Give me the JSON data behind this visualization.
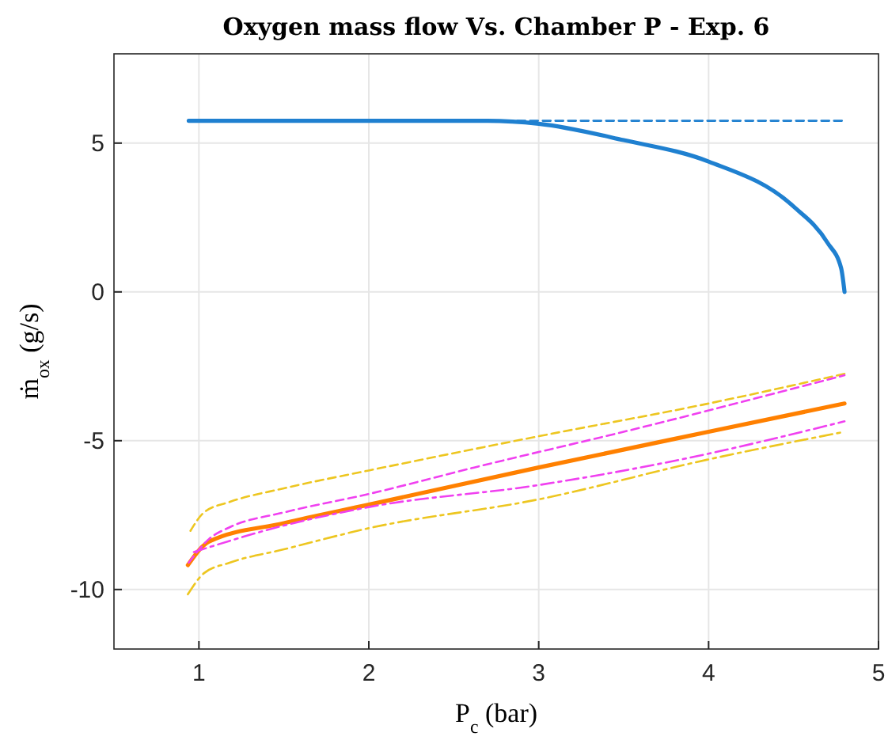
{
  "chart_data": {
    "type": "line",
    "title": "Oxygen mass flow Vs. Chamber P - Exp. 6",
    "xlabel": "P$_{c}$ (bar)",
    "ylabel": "ṁ$_{ox}$ (g/s)",
    "xlim": [
      0.5,
      5
    ],
    "ylim": [
      -12,
      8
    ],
    "xticks": [
      1,
      2,
      3,
      4,
      5
    ],
    "yticks": [
      -10,
      -5,
      0,
      5
    ],
    "grid": true,
    "marker": "none",
    "series": [
      {
        "color": "#1f80d0",
        "line_style": "solid",
        "x": [
          0.94,
          2.7,
          3,
          3.5,
          4,
          4.5,
          4.7,
          4.78,
          4.8
        ],
        "values": [
          5.75,
          5.75,
          5.65,
          5.1,
          4.38,
          2.87,
          1.65,
          0.8,
          0
        ]
      },
      {
        "color": "#1f80d0",
        "line_style": "dashed",
        "x": [
          2.8,
          4.8
        ],
        "values": [
          5.75,
          5.75
        ]
      },
      {
        "color": "#edc620",
        "line_style": "dashed",
        "x": [
          0.95,
          1.03,
          1.18,
          1.5,
          2,
          3,
          4,
          4.8
        ],
        "values": [
          -8.03,
          -7.41,
          -7.06,
          -6.6,
          -6.0,
          -4.85,
          -3.75,
          -2.75
        ]
      },
      {
        "color": "#f040f0",
        "line_style": "dashed",
        "x": [
          0.94,
          1.06,
          1.18,
          1.5,
          2,
          2.62,
          3.5,
          4.8
        ],
        "values": [
          -9.1,
          -8.3,
          -7.91,
          -7.41,
          -6.79,
          -5.9,
          -4.7,
          -2.8
        ]
      },
      {
        "color": "#ff8000",
        "line_style": "solid",
        "x": [
          0.935,
          1.06,
          1.5,
          2,
          3,
          4,
          4.8
        ],
        "values": [
          -9.18,
          -8.39,
          -7.77,
          -7.15,
          -5.9,
          -4.7,
          -3.75
        ]
      },
      {
        "color": "#f040f0",
        "line_style": "dashdot",
        "x": [
          0.97,
          1.5,
          2,
          3,
          3.83,
          4.8
        ],
        "values": [
          -8.74,
          -7.85,
          -7.23,
          -6.49,
          -5.64,
          -4.35
        ]
      },
      {
        "color": "#edc620",
        "line_style": "dashdot",
        "x": [
          0.935,
          1.03,
          1.18,
          1.5,
          2,
          3,
          3.99,
          4.8
        ],
        "values": [
          -10.16,
          -9.45,
          -9.1,
          -8.65,
          -7.94,
          -6.97,
          -5.64,
          -4.7
        ]
      }
    ]
  }
}
